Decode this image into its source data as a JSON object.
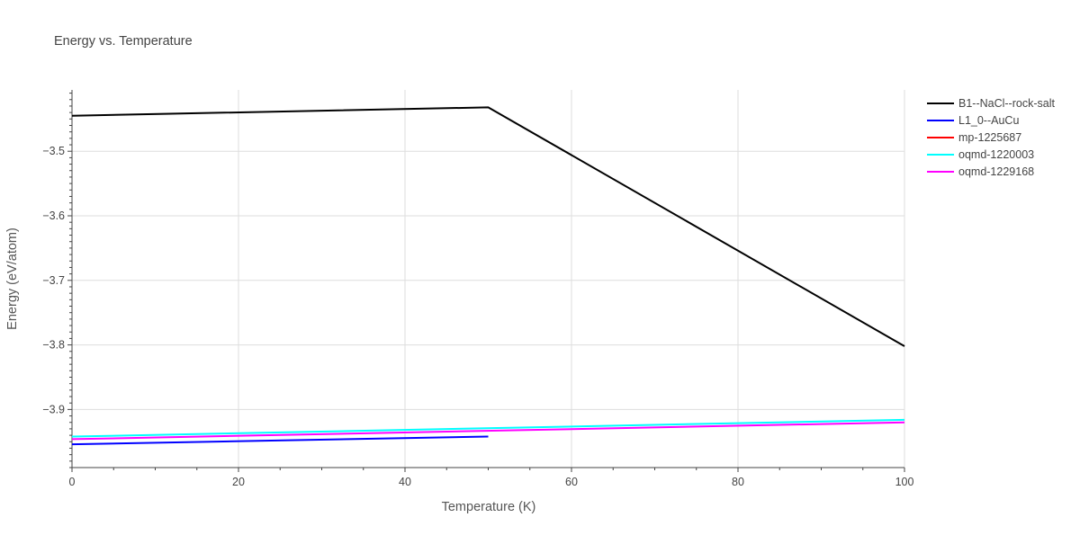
{
  "chart_data": {
    "type": "line",
    "title": "Energy vs. Temperature",
    "xlabel": "Temperature (K)",
    "ylabel": "Energy (eV/atom)",
    "xlim": [
      0,
      100
    ],
    "ylim": [
      -3.99,
      -3.405
    ],
    "x_ticks": [
      0,
      20,
      40,
      60,
      80,
      100
    ],
    "x_tick_labels": [
      "0",
      "20",
      "40",
      "60",
      "80",
      "100"
    ],
    "y_ticks": [
      -3.9,
      -3.8,
      -3.7,
      -3.6,
      -3.5
    ],
    "y_tick_labels": [
      "−3.9",
      "−3.8",
      "−3.7",
      "−3.6",
      "−3.5"
    ],
    "grid": true,
    "legend_position": "top-right",
    "series": [
      {
        "name": "B1--NaCl--rock-salt",
        "color": "#000000",
        "x": [
          0,
          50,
          100
        ],
        "y": [
          -3.445,
          -3.432,
          -3.802
        ]
      },
      {
        "name": "L1_0--AuCu",
        "color": "#0000ff",
        "x": [
          0,
          50
        ],
        "y": [
          -3.954,
          -3.942
        ]
      },
      {
        "name": "mp-1225687",
        "color": "#ff0000",
        "x": [],
        "y": []
      },
      {
        "name": "oqmd-1220003",
        "color": "#00ffff",
        "x": [
          0,
          100
        ],
        "y": [
          -3.942,
          -3.916
        ]
      },
      {
        "name": "oqmd-1229168",
        "color": "#ff00ff",
        "x": [
          0,
          100
        ],
        "y": [
          -3.946,
          -3.92
        ]
      }
    ]
  }
}
